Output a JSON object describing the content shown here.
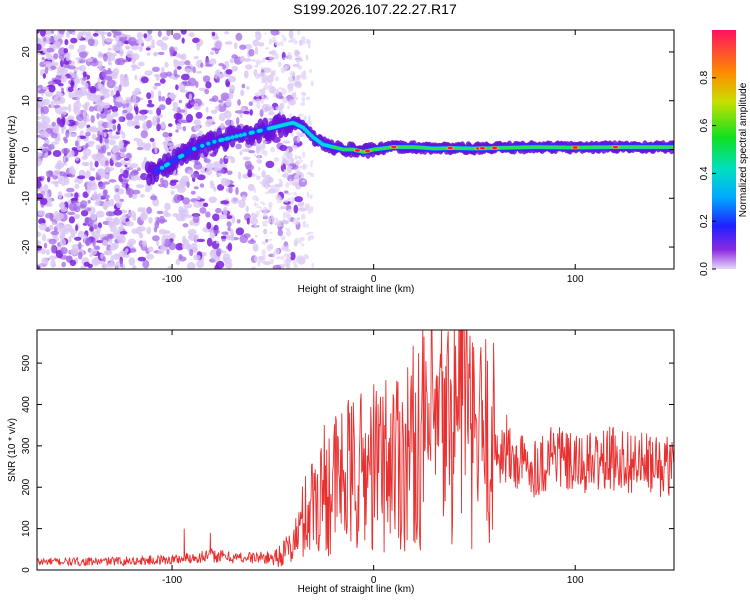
{
  "title": "S199.2026.107.22.27.R17",
  "chart_data": [
    {
      "type": "heatmap",
      "name": "spectrogram",
      "xlabel": "Height of straight line (km)",
      "ylabel": "Frequency (Hz)",
      "xlim": [
        -167,
        149
      ],
      "ylim": [
        -24.5,
        24.5
      ],
      "xticks": [
        -100,
        0,
        100
      ],
      "xtick_labels": [
        "-100",
        "0",
        "100"
      ],
      "yticks": [
        -20,
        -10,
        0,
        10,
        20
      ],
      "ytick_labels": [
        "-20",
        "-10",
        "0",
        "10",
        "20"
      ],
      "ridge": {
        "x": [
          -167,
          -110,
          -100,
          -90,
          -80,
          -70,
          -60,
          -50,
          -40,
          -35,
          -30,
          -25,
          -20,
          -15,
          -10,
          -5,
          0,
          10,
          20,
          30,
          40,
          50,
          60,
          80,
          100,
          120,
          149
        ],
        "freq": [
          -7,
          -5,
          -2.5,
          0,
          1.5,
          2.5,
          3.5,
          4.5,
          5.5,
          4.5,
          2.5,
          1,
          0.5,
          0,
          0,
          -0.5,
          0,
          0.5,
          0.5,
          0.2,
          0.3,
          0.2,
          0.3,
          0.5,
          0.4,
          0.5,
          0.5
        ]
      },
      "colorbar": {
        "label": "Normalized spectral amplitude",
        "range": [
          0,
          1
        ],
        "ticks": [
          0.0,
          0.2,
          0.4,
          0.6,
          0.8
        ],
        "tick_labels": [
          "0.0",
          "0.2",
          "0.4",
          "0.6",
          "0.8"
        ]
      }
    },
    {
      "type": "line",
      "name": "snr",
      "xlabel": "Height of straight line (km)",
      "ylabel": "SNR (10 * v/v)",
      "xlim": [
        -167,
        149
      ],
      "ylim": [
        0,
        580
      ],
      "xticks": [
        -100,
        0,
        100
      ],
      "xtick_labels": [
        "-100",
        "0",
        "100"
      ],
      "yticks": [
        0,
        100,
        200,
        300,
        400,
        500
      ],
      "ytick_labels": [
        "0",
        "100",
        "200",
        "300",
        "400",
        "500"
      ],
      "color": "#e83030",
      "series": [
        {
          "name": "SNR",
          "x": [
            -167,
            -140,
            -120,
            -100,
            -90,
            -80,
            -70,
            -60,
            -50,
            -45,
            -40,
            -35,
            -30,
            -25,
            -20,
            -15,
            -10,
            -5,
            0,
            5,
            10,
            15,
            20,
            25,
            30,
            35,
            40,
            44,
            48,
            55,
            60,
            65,
            70,
            80,
            85,
            90,
            95,
            100,
            110,
            120,
            130,
            140,
            149
          ],
          "y": [
            20,
            20,
            22,
            25,
            30,
            35,
            30,
            30,
            30,
            40,
            60,
            120,
            170,
            200,
            210,
            220,
            230,
            240,
            250,
            260,
            280,
            280,
            300,
            320,
            330,
            340,
            350,
            560,
            300,
            320,
            300,
            280,
            260,
            250,
            260,
            290,
            260,
            250,
            260,
            270,
            260,
            250,
            250
          ]
        }
      ],
      "spikes": [
        {
          "x": -94,
          "y": 100
        },
        {
          "x": -81,
          "y": 90
        },
        {
          "x": 35,
          "y": 445
        },
        {
          "x": 44,
          "y": 578
        },
        {
          "x": 54,
          "y": 410
        },
        {
          "x": 66,
          "y": 375
        },
        {
          "x": 88,
          "y": 345
        }
      ]
    }
  ]
}
